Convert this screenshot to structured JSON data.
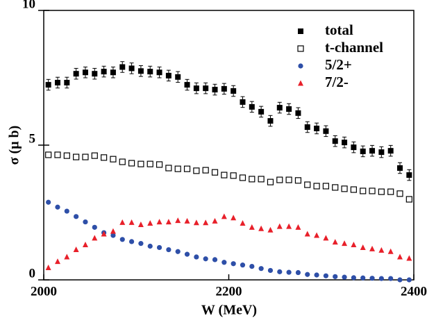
{
  "chart_data": {
    "type": "scatter",
    "xlabel": "W (MeV)",
    "ylabel": "σ (μ b)",
    "xlim": [
      2000,
      2400
    ],
    "xticks": [
      2000,
      2200,
      2400
    ],
    "ylim": [
      0,
      10
    ],
    "yticks": [
      0,
      5,
      10
    ],
    "legend": "upper right",
    "x": [
      2005,
      2015,
      2025,
      2035,
      2045,
      2055,
      2065,
      2075,
      2085,
      2095,
      2105,
      2115,
      2125,
      2135,
      2145,
      2155,
      2165,
      2175,
      2185,
      2195,
      2205,
      2215,
      2225,
      2235,
      2245,
      2255,
      2265,
      2275,
      2285,
      2295,
      2305,
      2315,
      2325,
      2335,
      2345,
      2355,
      2365,
      2375,
      2385,
      2395
    ],
    "series": [
      {
        "name": "total",
        "color": "#000000",
        "marker": "square",
        "values": [
          7.24,
          7.32,
          7.32,
          7.65,
          7.7,
          7.65,
          7.73,
          7.7,
          7.9,
          7.85,
          7.75,
          7.73,
          7.7,
          7.58,
          7.53,
          7.24,
          7.11,
          7.11,
          7.06,
          7.09,
          7.01,
          6.6,
          6.42,
          6.24,
          5.9,
          6.39,
          6.34,
          6.19,
          5.67,
          5.62,
          5.52,
          5.15,
          5.1,
          4.92,
          4.77,
          4.79,
          4.74,
          4.79,
          4.15,
          3.89
        ],
        "errors": [
          0.2,
          0.2,
          0.2,
          0.2,
          0.2,
          0.2,
          0.2,
          0.2,
          0.2,
          0.2,
          0.2,
          0.2,
          0.2,
          0.2,
          0.2,
          0.2,
          0.2,
          0.2,
          0.2,
          0.2,
          0.2,
          0.2,
          0.2,
          0.2,
          0.2,
          0.2,
          0.2,
          0.2,
          0.2,
          0.2,
          0.2,
          0.2,
          0.2,
          0.2,
          0.2,
          0.2,
          0.2,
          0.2,
          0.2,
          0.2
        ]
      },
      {
        "name": "t-channel",
        "color": "#000000",
        "marker": "open-square",
        "values": [
          4.64,
          4.64,
          4.61,
          4.56,
          4.56,
          4.61,
          4.54,
          4.48,
          4.38,
          4.33,
          4.3,
          4.3,
          4.28,
          4.15,
          4.12,
          4.12,
          4.05,
          4.07,
          3.99,
          3.89,
          3.87,
          3.79,
          3.74,
          3.74,
          3.63,
          3.71,
          3.71,
          3.69,
          3.53,
          3.48,
          3.48,
          3.43,
          3.38,
          3.35,
          3.3,
          3.3,
          3.27,
          3.27,
          3.2,
          2.99
        ]
      },
      {
        "name": "5/2+",
        "color": "#2e4fa8",
        "marker": "circle",
        "values": [
          2.88,
          2.7,
          2.55,
          2.35,
          2.15,
          1.95,
          1.75,
          1.65,
          1.5,
          1.42,
          1.35,
          1.25,
          1.2,
          1.12,
          1.05,
          0.95,
          0.85,
          0.78,
          0.75,
          0.65,
          0.6,
          0.55,
          0.5,
          0.42,
          0.35,
          0.3,
          0.28,
          0.27,
          0.2,
          0.18,
          0.15,
          0.12,
          0.1,
          0.08,
          0.07,
          0.06,
          0.05,
          0.05,
          0.0,
          0.0
        ]
      },
      {
        "name": "7/2-",
        "color": "#e8202a",
        "marker": "triangle",
        "values": [
          0.45,
          0.68,
          0.85,
          1.12,
          1.3,
          1.55,
          1.7,
          1.8,
          2.13,
          2.13,
          2.05,
          2.1,
          2.15,
          2.15,
          2.2,
          2.18,
          2.12,
          2.12,
          2.18,
          2.35,
          2.3,
          2.1,
          1.95,
          1.9,
          1.85,
          1.98,
          1.98,
          1.95,
          1.7,
          1.65,
          1.55,
          1.4,
          1.35,
          1.3,
          1.2,
          1.15,
          1.1,
          1.05,
          0.85,
          0.8
        ]
      }
    ]
  }
}
